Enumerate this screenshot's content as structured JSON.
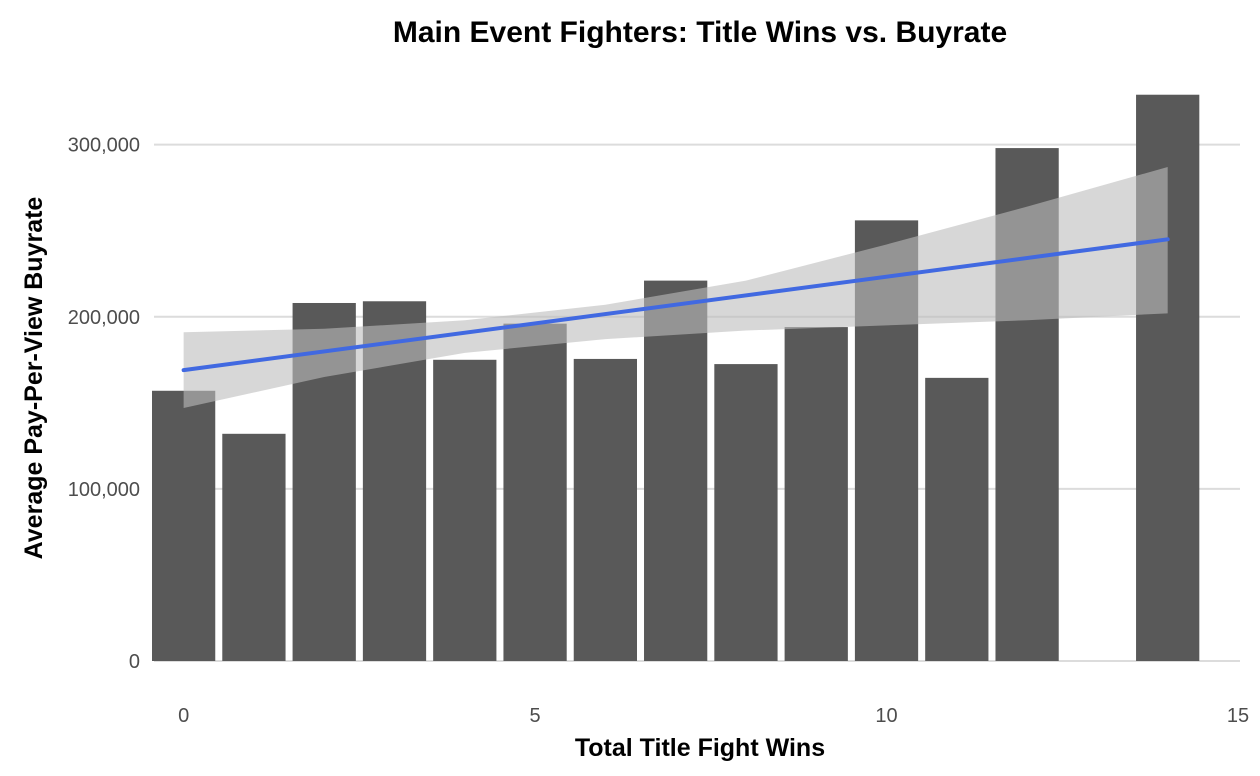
{
  "chart_data": {
    "type": "bar",
    "title": "Main Event Fighters: Title Wins vs. Buyrate",
    "xlabel": "Total Title Fight Wins",
    "ylabel": "Average Pay-Per-View Buyrate",
    "xlim": [
      -0.45,
      15.1
    ],
    "ylim": [
      0,
      330000
    ],
    "x_ticks": [
      0,
      5,
      10,
      15
    ],
    "x_tick_labels": [
      "0",
      "5",
      "10",
      "15"
    ],
    "y_ticks": [
      0,
      100000,
      200000,
      300000
    ],
    "y_tick_labels": [
      "0",
      "100,000",
      "200,000",
      "300,000"
    ],
    "grid": "horizontal",
    "bar_color": "#595959",
    "x": [
      0,
      1,
      2,
      3,
      4,
      5,
      6,
      7,
      8,
      9,
      10,
      11,
      12,
      14
    ],
    "values": [
      157000,
      132000,
      208000,
      209000,
      175000,
      196000,
      175500,
      221000,
      172500,
      194000,
      256000,
      164500,
      298000,
      329000
    ],
    "trend_line": {
      "color": "#4169e1",
      "x": [
        0,
        14
      ],
      "y": [
        169000,
        245000
      ]
    },
    "confidence_band": {
      "color": "#bdbdbd",
      "x": [
        0,
        2,
        4,
        6,
        8,
        10,
        12,
        14
      ],
      "lower": [
        147000,
        165000,
        179000,
        187000,
        192000,
        195000,
        198000,
        202000
      ],
      "upper": [
        191000,
        193000,
        198000,
        207000,
        221000,
        242000,
        264000,
        287000
      ]
    }
  }
}
